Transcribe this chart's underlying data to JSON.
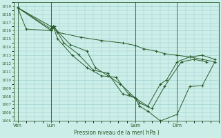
{
  "title": "Pression niveau de la mer( hPa )",
  "bg_color": "#cceee8",
  "grid_color": "#99cccc",
  "line_color": "#2a5c2a",
  "ylim": [
    1005,
    1019.5
  ],
  "yticks": [
    1005,
    1006,
    1007,
    1008,
    1009,
    1010,
    1011,
    1012,
    1013,
    1014,
    1015,
    1016,
    1017,
    1018,
    1019
  ],
  "xtick_labels": [
    "Ven",
    "Lun",
    "Sam",
    "Dim"
  ],
  "xtick_positions": [
    0,
    16,
    56,
    76
  ],
  "xlim": [
    -2,
    96
  ],
  "lines": [
    {
      "x": [
        0,
        4,
        16,
        17,
        19,
        26,
        33,
        40,
        47,
        53,
        56,
        58,
        62,
        68,
        76,
        82,
        88,
        94
      ],
      "y": [
        1018.8,
        1016.2,
        1016.0,
        1016.5,
        1015.0,
        1013.0,
        1011.5,
        1010.5,
        1010.3,
        1008.2,
        1007.8,
        1006.8,
        1006.2,
        1005.0,
        1005.8,
        1009.2,
        1009.3,
        1012.2
      ]
    },
    {
      "x": [
        0,
        16,
        17.5,
        22,
        29,
        36,
        43,
        50,
        56,
        58,
        64,
        70,
        78,
        84,
        90
      ],
      "y": [
        1018.8,
        1016.0,
        1016.5,
        1014.5,
        1013.1,
        1011.2,
        1010.8,
        1008.3,
        1007.8,
        1007.2,
        1006.5,
        1009.2,
        1012.2,
        1012.5,
        1012.2
      ]
    },
    {
      "x": [
        0,
        16,
        17,
        25,
        33,
        37,
        43,
        49,
        56,
        62,
        68,
        71,
        76,
        82,
        88,
        94
      ],
      "y": [
        1018.8,
        1016.2,
        1016.5,
        1014.3,
        1013.5,
        1011.5,
        1010.5,
        1009.5,
        1007.8,
        1006.8,
        1009.5,
        1010.0,
        1012.2,
        1012.8,
        1013.0,
        1012.5
      ]
    },
    {
      "x": [
        0,
        16,
        19,
        30,
        40,
        50,
        56,
        60,
        66,
        70,
        76,
        82,
        88,
        94
      ],
      "y": [
        1018.8,
        1016.5,
        1015.8,
        1015.2,
        1014.8,
        1014.5,
        1014.2,
        1013.8,
        1013.5,
        1013.2,
        1013.0,
        1012.8,
        1012.5,
        1012.2
      ]
    }
  ]
}
